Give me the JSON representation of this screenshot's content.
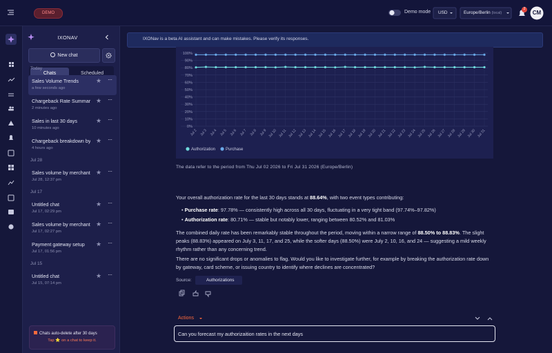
{
  "topbar": {
    "badge": "DEMO",
    "demo_mode": "Demo mode",
    "currency": "USD",
    "timezone": "Europe/Berlin",
    "timezone_note": "(local)",
    "notifications": "2",
    "avatar": "CM"
  },
  "sidebar": {
    "title": "IXONAV",
    "new_chat": "New chat",
    "tabs": [
      "Chats",
      "Scheduled"
    ],
    "groups": [
      {
        "label": "Today",
        "chats": [
          {
            "title": "Sales Volume Trends",
            "time": "a few seconds ago"
          },
          {
            "title": "Chargeback Rate Summary",
            "time": "2 minutes ago"
          },
          {
            "title": "Sales in last 30 days",
            "time": "10 minutes ago"
          },
          {
            "title": "Chargeback breakdown by...",
            "time": "4 hours ago"
          }
        ]
      },
      {
        "label": "Jul 28",
        "chats": [
          {
            "title": "Sales volume by merchant ...",
            "time": "Jul 28, 12:37 pm"
          }
        ]
      },
      {
        "label": "Jul 17",
        "chats": [
          {
            "title": "Untitled chat",
            "time": "Jul 17, 02:29 pm"
          },
          {
            "title": "Sales volume by merchant ...",
            "time": "Jul 17, 02:27 pm"
          },
          {
            "title": "Payment gateway setup",
            "time": "Jul 17, 01:56 pm"
          }
        ]
      },
      {
        "label": "Jul 15",
        "chats": [
          {
            "title": "Untitled chat",
            "time": "Jul 15, 07:14 pm"
          }
        ]
      }
    ],
    "footer": {
      "title": "Chats auto-delete after 30 days",
      "hint": "Tap ⭐ on a chat to keep it."
    }
  },
  "banner": "IXONav is a beta AI assistant and can make mistakes. Please verify its responses.",
  "chart_data": {
    "type": "line",
    "categories": [
      "Jul 2",
      "Jul 3",
      "Jul 4",
      "Jul 5",
      "Jul 6",
      "Jul 7",
      "Jul 8",
      "Jul 9",
      "Jul 10",
      "Jul 11",
      "Jul 12",
      "Jul 13",
      "Jul 14",
      "Jul 15",
      "Jul 16",
      "Jul 17",
      "Jul 18",
      "Jul 19",
      "Jul 20",
      "Jul 21",
      "Jul 22",
      "Jul 23",
      "Jul 24",
      "Jul 25",
      "Jul 26",
      "Jul 27",
      "Jul 28",
      "Jul 29",
      "Jul 30",
      "Jul 31"
    ],
    "series": [
      {
        "name": "Authorization",
        "color": "#6fd9dc",
        "values": [
          80.5,
          81.0,
          80.7,
          80.7,
          80.7,
          80.7,
          80.7,
          80.7,
          80.5,
          81.0,
          80.7,
          80.7,
          80.7,
          80.7,
          80.5,
          81.0,
          80.7,
          80.7,
          80.7,
          80.7,
          80.7,
          80.7,
          80.5,
          81.0,
          80.7,
          80.7,
          80.7,
          80.7,
          80.7,
          80.7
        ]
      },
      {
        "name": "Purchase",
        "color": "#6aa8e8",
        "values": [
          97.8,
          97.8,
          97.8,
          97.8,
          97.8,
          97.8,
          97.8,
          97.8,
          97.8,
          97.8,
          97.8,
          97.8,
          97.8,
          97.8,
          97.8,
          97.8,
          97.8,
          97.8,
          97.8,
          97.8,
          97.8,
          97.8,
          97.8,
          97.8,
          97.8,
          97.8,
          97.8,
          97.8,
          97.8,
          97.8
        ]
      }
    ],
    "ylim": [
      0,
      100
    ],
    "yticks": [
      {
        "value": 0,
        "label": "0%"
      },
      {
        "value": 10,
        "label": "10%"
      },
      {
        "value": 20,
        "label": "20%"
      },
      {
        "value": 30,
        "label": "30%"
      },
      {
        "value": 40,
        "label": "40%"
      },
      {
        "value": 50,
        "label": "50%"
      },
      {
        "value": 60,
        "label": "60%"
      },
      {
        "value": 70,
        "label": "70%"
      },
      {
        "value": 80,
        "label": "80%"
      },
      {
        "value": 90,
        "label": "90%"
      },
      {
        "value": 100,
        "label": "100%"
      }
    ],
    "grid": true,
    "legend": "bottom"
  },
  "chat": {
    "period_note": "The data refer to the period from Thu Jul 02 2026 to Fri Jul 31 2026 (Europe/Berlin)",
    "intro": [
      "Your overall authorization rate for the last 30 days stands at ",
      "88.64%",
      ", with two event types contributing:"
    ],
    "bullets": [
      {
        "label": "Purchase rate",
        "text": ": 97.78% — consistently high across all 30 days, fluctuating in a very tight band (97.74%–97.82%)"
      },
      {
        "label": "Authorization rate",
        "text": ": 80.71% — stable but notably lower, ranging between 80.52% and 81.03%"
      }
    ],
    "summary": [
      "The combined daily rate has been remarkably stable throughout the period, moving within a narrow range of ",
      "88.50% to 88.83%",
      ". The slight peaks (88.83%) appeared on July 3, 11, 17, and 25, while the softer days (88.50%) were July 2, 10, 16, and 24 — suggesting a mild weekly rhythm rather than any concerning trend."
    ],
    "closing": "There are no significant drops or anomalies to flag. Would you like to investigate further, for example by breaking the authorization rate down by gateway, card scheme, or issuing country to identify where declines are concentrated?",
    "source_label": "Source:",
    "source": "Authorizations",
    "actions": "Actions",
    "input": "Can you forecast my authorizaition rates in the next days"
  }
}
